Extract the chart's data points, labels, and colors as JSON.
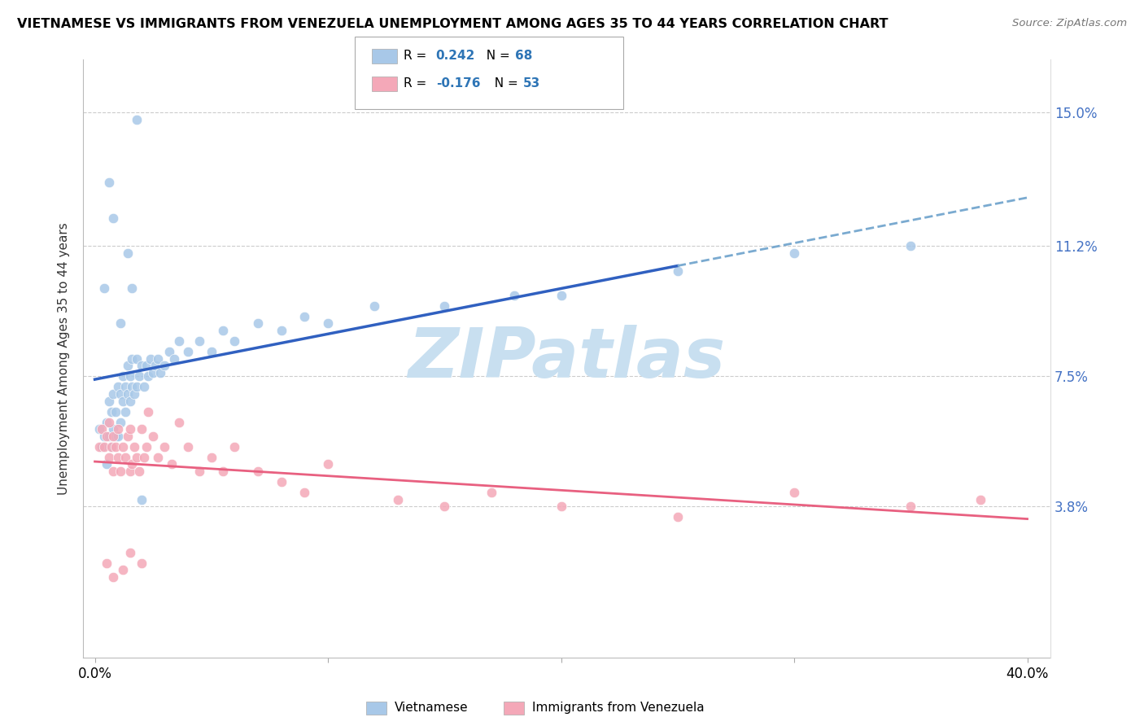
{
  "title": "VIETNAMESE VS IMMIGRANTS FROM VENEZUELA UNEMPLOYMENT AMONG AGES 35 TO 44 YEARS CORRELATION CHART",
  "source": "Source: ZipAtlas.com",
  "ylabel": "Unemployment Among Ages 35 to 44 years",
  "xlim": [
    0.0,
    0.4
  ],
  "ylim": [
    0.0,
    0.16
  ],
  "yticks": [
    0.038,
    0.075,
    0.112,
    0.15
  ],
  "ytick_labels": [
    "3.8%",
    "7.5%",
    "11.2%",
    "15.0%"
  ],
  "xtick_left_label": "0.0%",
  "xtick_right_label": "40.0%",
  "legend_r1": "0.242",
  "legend_n1": "68",
  "legend_r2": "-0.176",
  "legend_n2": "53",
  "blue_color": "#A8C8E8",
  "blue_line_color": "#3060C0",
  "blue_dash_color": "#7AAAD0",
  "pink_color": "#F4A8B8",
  "pink_line_color": "#E86080",
  "watermark_color": "#C8DFF0",
  "blue_scatter_x": [
    0.002,
    0.003,
    0.004,
    0.005,
    0.005,
    0.006,
    0.006,
    0.007,
    0.007,
    0.008,
    0.008,
    0.009,
    0.009,
    0.01,
    0.01,
    0.011,
    0.011,
    0.012,
    0.012,
    0.013,
    0.013,
    0.014,
    0.014,
    0.015,
    0.015,
    0.016,
    0.016,
    0.017,
    0.018,
    0.018,
    0.019,
    0.02,
    0.021,
    0.022,
    0.023,
    0.024,
    0.025,
    0.026,
    0.027,
    0.028,
    0.03,
    0.032,
    0.034,
    0.036,
    0.04,
    0.045,
    0.05,
    0.055,
    0.06,
    0.07,
    0.08,
    0.09,
    0.1,
    0.12,
    0.15,
    0.18,
    0.2,
    0.25,
    0.3,
    0.35,
    0.02,
    0.016,
    0.014,
    0.011,
    0.008,
    0.006,
    0.004,
    0.018
  ],
  "blue_scatter_y": [
    0.06,
    0.055,
    0.058,
    0.062,
    0.05,
    0.058,
    0.068,
    0.055,
    0.065,
    0.06,
    0.07,
    0.058,
    0.065,
    0.058,
    0.072,
    0.062,
    0.07,
    0.068,
    0.075,
    0.065,
    0.072,
    0.07,
    0.078,
    0.068,
    0.075,
    0.072,
    0.08,
    0.07,
    0.072,
    0.08,
    0.075,
    0.078,
    0.072,
    0.078,
    0.075,
    0.08,
    0.076,
    0.078,
    0.08,
    0.076,
    0.078,
    0.082,
    0.08,
    0.085,
    0.082,
    0.085,
    0.082,
    0.088,
    0.085,
    0.09,
    0.088,
    0.092,
    0.09,
    0.095,
    0.095,
    0.098,
    0.098,
    0.105,
    0.11,
    0.112,
    0.04,
    0.1,
    0.11,
    0.09,
    0.12,
    0.13,
    0.1,
    0.148
  ],
  "pink_scatter_x": [
    0.002,
    0.003,
    0.004,
    0.005,
    0.006,
    0.006,
    0.007,
    0.008,
    0.008,
    0.009,
    0.01,
    0.01,
    0.011,
    0.012,
    0.013,
    0.014,
    0.015,
    0.015,
    0.016,
    0.017,
    0.018,
    0.019,
    0.02,
    0.021,
    0.022,
    0.023,
    0.025,
    0.027,
    0.03,
    0.033,
    0.036,
    0.04,
    0.045,
    0.05,
    0.055,
    0.06,
    0.07,
    0.08,
    0.09,
    0.1,
    0.13,
    0.15,
    0.17,
    0.2,
    0.25,
    0.3,
    0.35,
    0.38,
    0.02,
    0.015,
    0.012,
    0.008,
    0.005
  ],
  "pink_scatter_y": [
    0.055,
    0.06,
    0.055,
    0.058,
    0.052,
    0.062,
    0.055,
    0.058,
    0.048,
    0.055,
    0.052,
    0.06,
    0.048,
    0.055,
    0.052,
    0.058,
    0.048,
    0.06,
    0.05,
    0.055,
    0.052,
    0.048,
    0.06,
    0.052,
    0.055,
    0.065,
    0.058,
    0.052,
    0.055,
    0.05,
    0.062,
    0.055,
    0.048,
    0.052,
    0.048,
    0.055,
    0.048,
    0.045,
    0.042,
    0.05,
    0.04,
    0.038,
    0.042,
    0.038,
    0.035,
    0.042,
    0.038,
    0.04,
    0.022,
    0.025,
    0.02,
    0.018,
    0.022
  ]
}
